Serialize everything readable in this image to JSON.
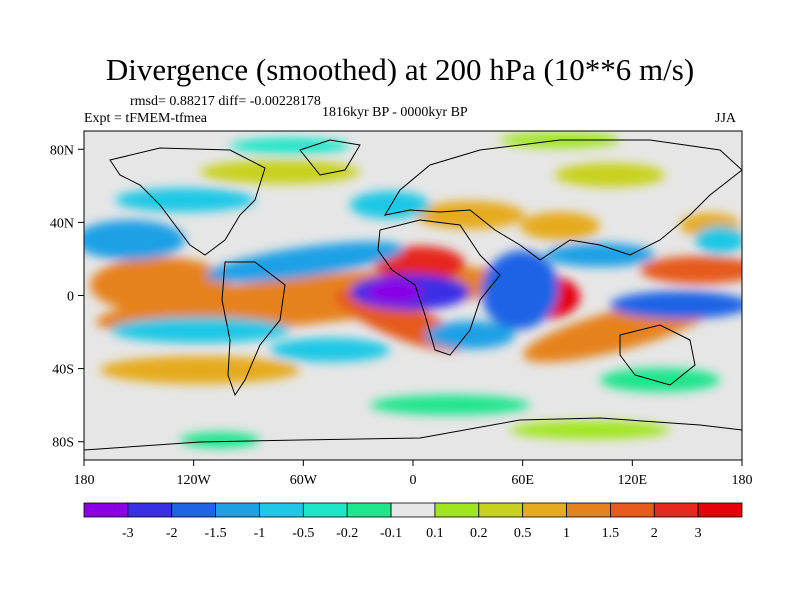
{
  "title": "Divergence (smoothed) at 200 hPa (10**6 m/s)",
  "stats_text": "rmsd= 0.88217 diff= -0.00228178",
  "experiment_text": "Expt = tFMEM-tfmea",
  "period_text": "1816kyr BP - 0000kyr BP",
  "season_text": "JJA",
  "x_ticks": [
    "180",
    "120W",
    "60W",
    "0",
    "60E",
    "120E",
    "180"
  ],
  "y_ticks": [
    "80N",
    "40N",
    "0",
    "40S",
    "80S"
  ],
  "colorbar": {
    "labels": [
      "-3",
      "-2",
      "-1.5",
      "-1",
      "-0.5",
      "-0.2",
      "-0.1",
      "0.1",
      "0.2",
      "0.5",
      "1",
      "1.5",
      "2",
      "3"
    ],
    "colors": [
      "#8a00e6",
      "#3a2ee6",
      "#1e64e6",
      "#1ea0e6",
      "#1ec8e6",
      "#1ee6c8",
      "#1ee68c",
      "#e6e6e6",
      "#a0e61e",
      "#c8d21e",
      "#e6aa1e",
      "#e6821e",
      "#e65a1e",
      "#e6281e",
      "#e6000a"
    ]
  },
  "map": {
    "background_color": "#e6e6e6",
    "projection": "cylindrical equidistant",
    "lon_range": [
      -180,
      180
    ],
    "lat_range": [
      -90,
      90
    ]
  }
}
